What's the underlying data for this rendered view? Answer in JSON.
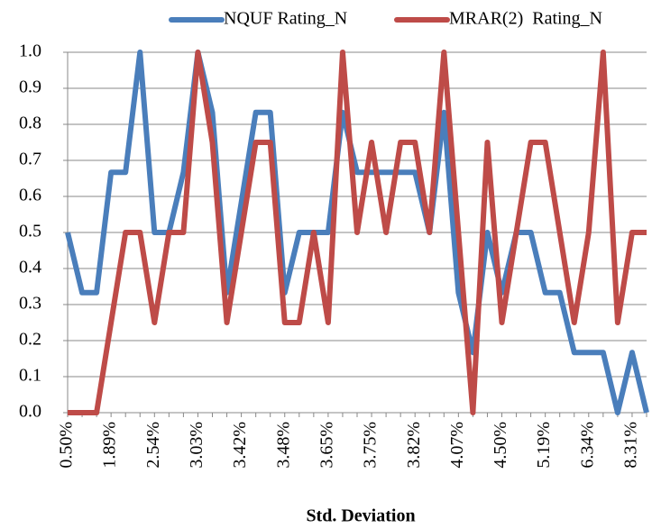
{
  "chart_data": {
    "type": "line",
    "x_label": "Std. Deviation",
    "categories": [
      "0.50%",
      null,
      null,
      "1.89%",
      null,
      null,
      "2.54%",
      null,
      null,
      "3.03%",
      null,
      null,
      "3.42%",
      null,
      null,
      "3.48%",
      null,
      null,
      "3.65%",
      null,
      null,
      "3.75%",
      null,
      null,
      "3.82%",
      null,
      null,
      "4.07%",
      null,
      null,
      "4.50%",
      null,
      null,
      "5.19%",
      null,
      null,
      "6.34%",
      null,
      null,
      "8.31%",
      null
    ],
    "series": [
      {
        "name": "NQUF Rating_N",
        "color": "#4a7ebb",
        "values": [
          0.5,
          0.333,
          0.333,
          0.667,
          0.667,
          1.0,
          0.5,
          0.5,
          0.667,
          1.0,
          0.833,
          0.333,
          0.583,
          0.833,
          0.833,
          0.333,
          0.5,
          0.5,
          0.5,
          0.833,
          0.667,
          0.667,
          0.667,
          0.667,
          0.667,
          0.5,
          0.833,
          0.333,
          0.167,
          0.5,
          0.333,
          0.5,
          0.5,
          0.333,
          0.333,
          0.167,
          0.167,
          0.167,
          0,
          0.167,
          0
        ]
      },
      {
        "name": "MRAR(2)  Rating_N",
        "color": "#be4b48",
        "values": [
          0,
          0,
          0,
          0.25,
          0.5,
          0.5,
          0.25,
          0.5,
          0.5,
          1.0,
          0.75,
          0.25,
          0.5,
          0.75,
          0.75,
          0.25,
          0.25,
          0.5,
          0.25,
          1.0,
          0.5,
          0.75,
          0.5,
          0.75,
          0.75,
          0.5,
          1.0,
          0.5,
          0,
          0.75,
          0.25,
          0.5,
          0.75,
          0.75,
          0.5,
          0.25,
          0.5,
          1.0,
          0.25,
          0.5,
          0.5
        ]
      }
    ],
    "ylim": [
      0,
      1
    ],
    "yticks": [
      {
        "value": 0,
        "label": "0.0"
      },
      0.1,
      0.2,
      0.3,
      0.4,
      0.5,
      0.6,
      0.7,
      0.8,
      0.9,
      {
        "value": 1,
        "label": "1.0"
      }
    ],
    "grid": true,
    "legend": "top"
  }
}
